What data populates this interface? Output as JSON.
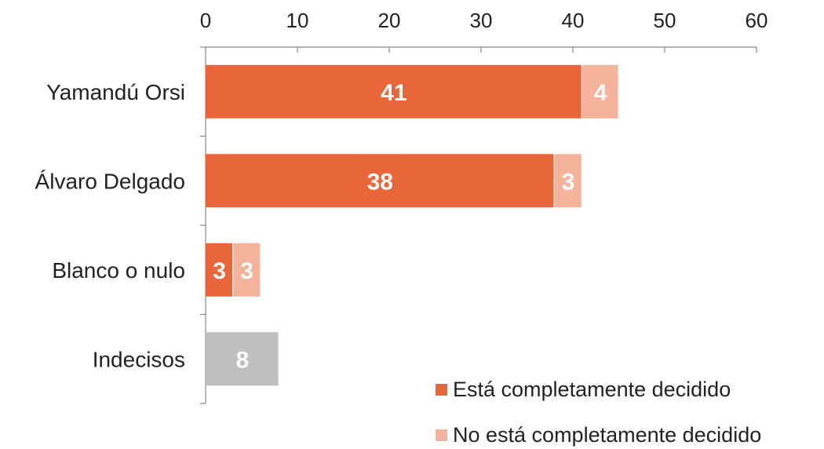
{
  "chart_data": {
    "type": "bar",
    "orientation": "horizontal",
    "stacked": true,
    "categories": [
      "Yamandú Orsi",
      "Álvaro Delgado",
      "Blanco o nulo",
      "Indecisos"
    ],
    "series": [
      {
        "name": "Está completamente decidido",
        "values": [
          41,
          38,
          3,
          null
        ],
        "color": "#E8663A",
        "legend": true
      },
      {
        "name": "No está completamente decidido",
        "values": [
          4,
          3,
          3,
          null
        ],
        "color": "#F4B39A",
        "legend": true
      },
      {
        "name": "",
        "values": [
          null,
          null,
          null,
          8
        ],
        "color": "#BFBFBF",
        "legend": false
      }
    ],
    "xlim": [
      0,
      60
    ],
    "xticks": [
      0,
      10,
      20,
      30,
      40,
      50,
      60
    ],
    "x_axis_position": "top",
    "grid": false,
    "legend_position": "bottom-right",
    "title": "",
    "xlabel": "",
    "ylabel": ""
  }
}
